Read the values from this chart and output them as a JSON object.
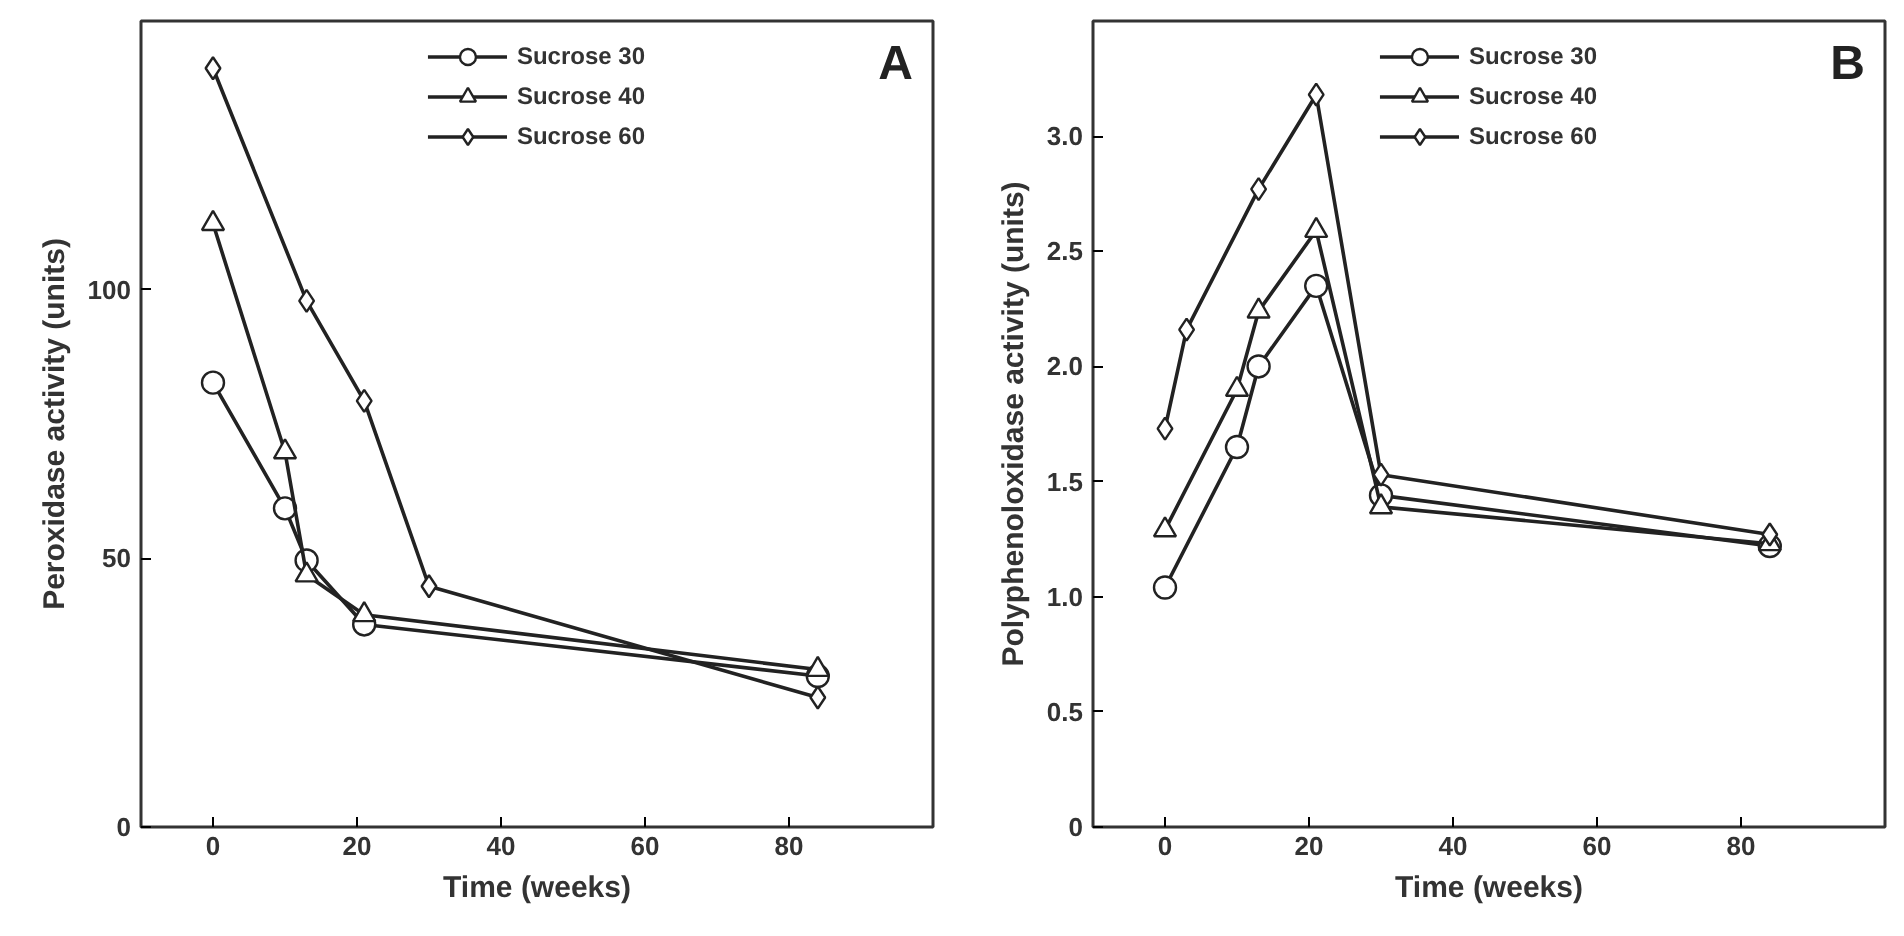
{
  "chart_data": [
    {
      "type": "line",
      "xlabel": "Time (weeks)",
      "ylabel": "Peroxidase activity (units)",
      "annotations": [
        "A"
      ],
      "xlim": [
        -10,
        100
      ],
      "xticks": [
        0,
        20,
        40,
        60,
        80
      ],
      "ylim": [
        0,
        150
      ],
      "yticks": [
        0,
        50,
        100
      ],
      "grid": false,
      "legend": "top",
      "line_style": "solid",
      "series": [
        {
          "name": "Sucrose 30",
          "color": "#222222",
          "marker": "circle",
          "x": [
            0,
            10,
            13,
            21,
            84
          ],
          "values": [
            82.7,
            59.3,
            49.6,
            37.7,
            28.1
          ]
        },
        {
          "name": "Sucrose 40",
          "color": "#222222",
          "marker": "triangle",
          "x": [
            0,
            10,
            13,
            21,
            84
          ],
          "values": [
            112.3,
            69.8,
            46.9,
            39.5,
            29.3
          ]
        },
        {
          "name": "Sucrose 60",
          "color": "#222222",
          "marker": "diamond",
          "x": [
            0,
            13,
            21,
            30,
            84
          ],
          "values": [
            141.2,
            97.9,
            79.3,
            44.8,
            24.1
          ]
        }
      ]
    },
    {
      "type": "line",
      "xlabel": "Time (weeks)",
      "ylabel": "Polyphenoloxidase activity (units)",
      "annotations": [
        "B"
      ],
      "xlim": [
        -10,
        100
      ],
      "xticks": [
        0,
        20,
        40,
        60,
        80
      ],
      "ylim": [
        0,
        3.5
      ],
      "yticks": [
        0,
        {
          "value": 0.5,
          "label": "0.5"
        },
        {
          "value": 1.0,
          "label": "1.0"
        },
        {
          "value": 1.5,
          "label": "1.5"
        },
        {
          "value": 2.0,
          "label": "2.0"
        },
        {
          "value": 2.5,
          "label": "2.5"
        },
        {
          "value": 3.0,
          "label": "3.0"
        }
      ],
      "grid": false,
      "legend": "top",
      "line_style": "solid",
      "series": [
        {
          "name": "Sucrose 30",
          "color": "#222222",
          "marker": "circle",
          "x": [
            0,
            10,
            13,
            21,
            30,
            84
          ],
          "values": [
            1.04,
            1.65,
            2.0,
            2.35,
            1.44,
            1.22
          ]
        },
        {
          "name": "Sucrose 40",
          "color": "#222222",
          "marker": "triangle",
          "x": [
            0,
            10,
            13,
            21,
            30,
            84
          ],
          "values": [
            1.29,
            1.9,
            2.24,
            2.59,
            1.39,
            1.23
          ]
        },
        {
          "name": "Sucrose 60",
          "color": "#222222",
          "marker": "diamond",
          "x": [
            0,
            3,
            13,
            21,
            30,
            84
          ],
          "values": [
            1.73,
            2.16,
            2.77,
            3.18,
            1.53,
            1.27
          ]
        }
      ]
    }
  ]
}
